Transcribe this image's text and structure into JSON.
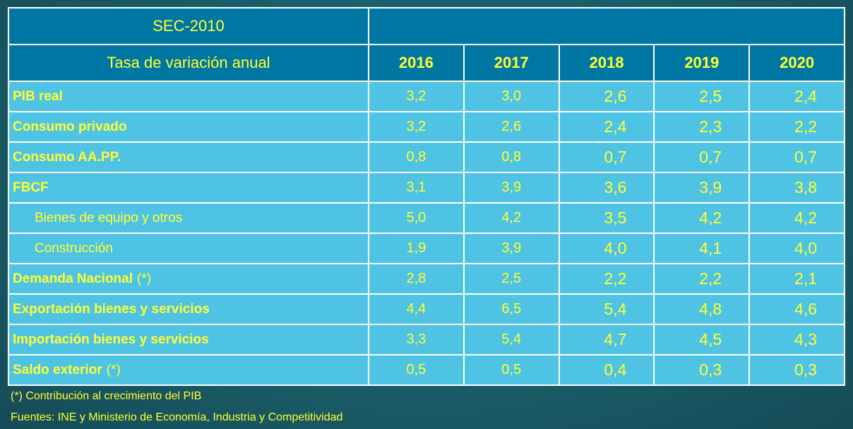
{
  "table": {
    "sec_title": "SEC-2010",
    "header_label": "Tasa de variación anual",
    "years": [
      "2016",
      "2017",
      "2018",
      "2019",
      "2020"
    ],
    "rows": [
      {
        "label": "PIB real",
        "note": "",
        "sub": false,
        "values": [
          "3,2",
          "3,0",
          "2,6",
          "2,5",
          "2,4"
        ]
      },
      {
        "label": "Consumo privado",
        "note": "",
        "sub": false,
        "values": [
          "3,2",
          "2,6",
          "2,4",
          "2,3",
          "2,2"
        ]
      },
      {
        "label": "Consumo  AA.PP.",
        "note": "",
        "sub": false,
        "values": [
          "0,8",
          "0,8",
          "0,7",
          "0,7",
          "0,7"
        ]
      },
      {
        "label": "FBCF",
        "note": "",
        "sub": false,
        "values": [
          "3,1",
          "3,9",
          "3,6",
          "3,9",
          "3,8"
        ]
      },
      {
        "label": "Bienes de equipo y otros",
        "note": "",
        "sub": true,
        "values": [
          "5,0",
          "4,2",
          "3,5",
          "4,2",
          "4,2"
        ]
      },
      {
        "label": "Construcción",
        "note": "",
        "sub": true,
        "values": [
          "1,9",
          "3,9",
          "4,0",
          "4,1",
          "4,0"
        ]
      },
      {
        "label": "Demanda Nacional",
        "note": "(*)",
        "sub": false,
        "values": [
          "2,8",
          "2,5",
          "2,2",
          "2,2",
          "2,1"
        ]
      },
      {
        "label": "Exportación bienes y servicios",
        "note": "",
        "sub": false,
        "values": [
          "4,4",
          "6,5",
          "5,4",
          "4,8",
          "4,6"
        ]
      },
      {
        "label": "Importación bienes y servicios",
        "note": "",
        "sub": false,
        "values": [
          "3,3",
          "5,4",
          "4,7",
          "4,5",
          "4,3"
        ]
      },
      {
        "label": "Saldo exterior",
        "note": "(*)",
        "sub": false,
        "values": [
          "0,5",
          "0,5",
          "0,4",
          "0,3",
          "0,3"
        ]
      }
    ]
  },
  "footnotes": {
    "note": "(*) Contribución al crecimiento del PIB",
    "sources": "Fuentes: INE y Ministerio de Economía, Industria y Competitividad"
  },
  "colors": {
    "background": "#1a5d68",
    "header_fill": "#0076a2",
    "row_fill": "#4fc3e3",
    "text": "#ffff33",
    "grid": "#ffffff"
  }
}
